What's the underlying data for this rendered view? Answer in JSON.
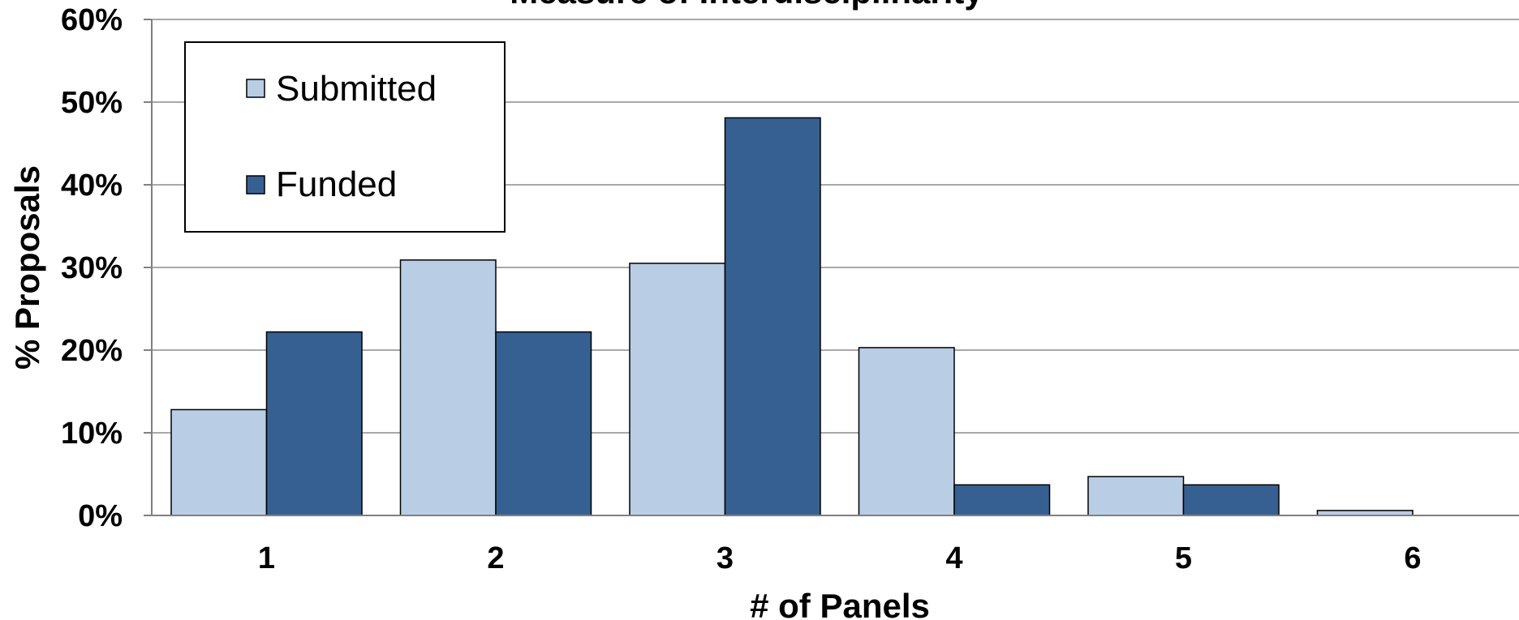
{
  "chart_data": {
    "type": "bar",
    "title": "Measure of Interdisciplinarity",
    "xlabel": "# of Panels",
    "ylabel": "% Proposals",
    "categories": [
      "1",
      "2",
      "3",
      "4",
      "5",
      "6"
    ],
    "series": [
      {
        "name": "Submitted",
        "values": [
          12.8,
          30.9,
          30.5,
          20.3,
          4.7,
          0.6
        ],
        "color": "#b9cde5"
      },
      {
        "name": "Funded",
        "values": [
          22.2,
          22.2,
          48.1,
          3.7,
          3.7,
          null
        ],
        "color": "#376092"
      }
    ],
    "ylim": [
      0,
      60
    ],
    "y_ticks": [
      "0%",
      "10%",
      "20%",
      "30%",
      "40%",
      "50%",
      "60%"
    ],
    "grid": true,
    "legend_position": "top-left"
  }
}
